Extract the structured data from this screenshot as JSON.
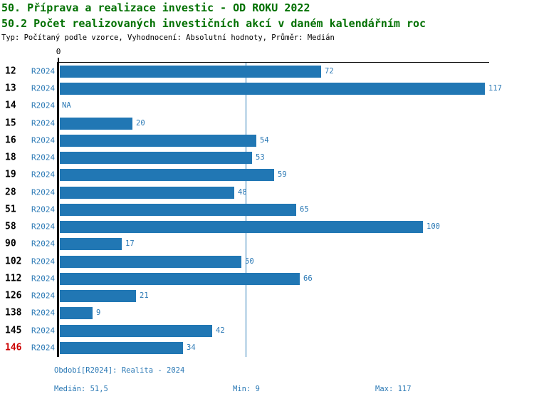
{
  "header": {
    "title_line1": "50. Příprava a realizace investic - OD ROKU 2022",
    "title_line2": "50.2 Počet realizovaných investičních akcí v daném kalendářním roc",
    "subtitle": "Typ: Počítaný podle vzorce, Vyhodnocení: Absolutní hodnoty, Průměr: Medián"
  },
  "chart_data": {
    "type": "bar",
    "orientation": "horizontal",
    "title": "50.2 Počet realizovaných investičních akcí v daném kalendářním roc",
    "x_axis": {
      "zero_label": "0",
      "xlim": [
        0,
        117
      ]
    },
    "period_label": "R2024",
    "na_label": "NA",
    "categories": [
      "12",
      "13",
      "14",
      "15",
      "16",
      "18",
      "19",
      "28",
      "51",
      "58",
      "90",
      "102",
      "112",
      "126",
      "138",
      "145",
      "146"
    ],
    "values": [
      72,
      117,
      null,
      20,
      54,
      53,
      59,
      48,
      65,
      100,
      17,
      50,
      66,
      21,
      9,
      42,
      34
    ],
    "highlighted_category": "146",
    "median_value": 51.5,
    "min_value": 9,
    "max_value": 117,
    "colors": {
      "bar": "#2177b4",
      "label": "#2b79b5",
      "highlight": "#cc0000",
      "title": "#007000",
      "axis": "#000000"
    }
  },
  "footer": {
    "period_line": "Období[R2024]: Realita - 2024",
    "median_label": "Medián: 51,5",
    "min_label": "Min: 9",
    "max_label": "Max: 117"
  }
}
